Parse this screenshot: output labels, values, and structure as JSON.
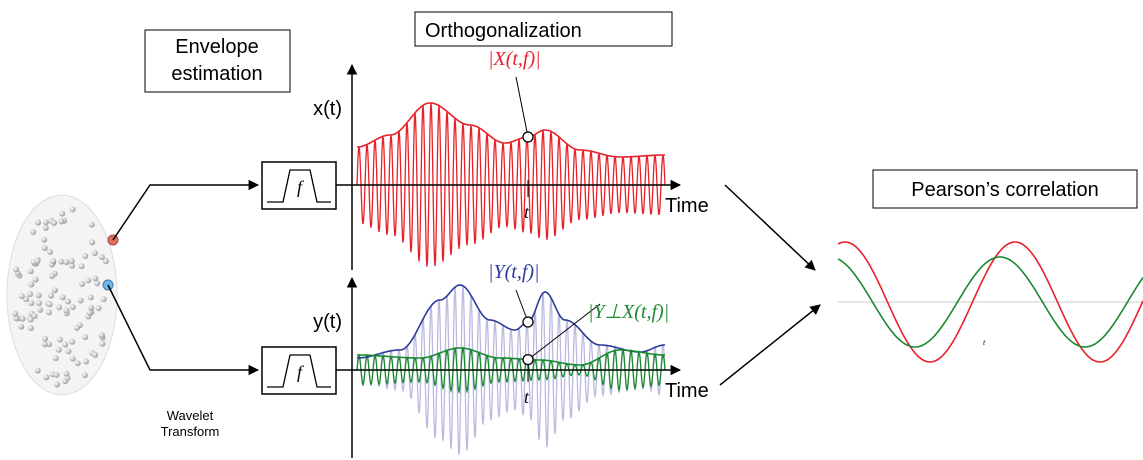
{
  "header": {
    "envelope_estimation": [
      "Envelope",
      "estimation"
    ],
    "orthogonalization": "Orthogonalization",
    "pearson": "Pearson’s correlation",
    "wavelet": [
      "Wavelet",
      "Transform"
    ]
  },
  "panels": [
    {
      "axis_label": "x(t)",
      "filter_label": "f",
      "envelope_label": "|X(t,f)|",
      "time_label": "Time",
      "t_marker": "t"
    },
    {
      "axis_label": "y(t)",
      "filter_label": "f",
      "envelope_label": "|Y(t,f)|",
      "orth_label": "|Y⊥X(t,f)|",
      "time_label": "Time",
      "t_marker": "t"
    }
  ],
  "correlation": {
    "t_marker": "t"
  }
}
